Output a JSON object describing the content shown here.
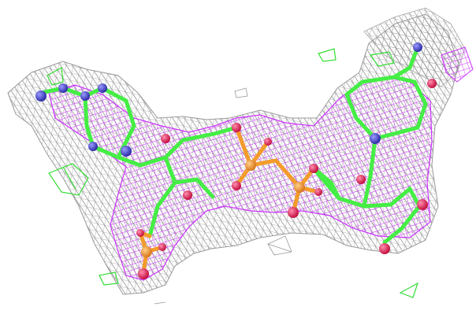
{
  "scene": {
    "kind": "molecular-electron-density-mesh",
    "background_color": "#ffffff",
    "mesh_colors": {
      "outer_mesh": "#9a9a9a",
      "inner_mesh": "#cc33ff",
      "difference_mesh": "#33dd33"
    },
    "atom_colors": {
      "carbon": "#44ee44",
      "nitrogen": "#4a4ad6",
      "oxygen": "#e8245a",
      "phosphorus": "#f39c2a"
    }
  }
}
